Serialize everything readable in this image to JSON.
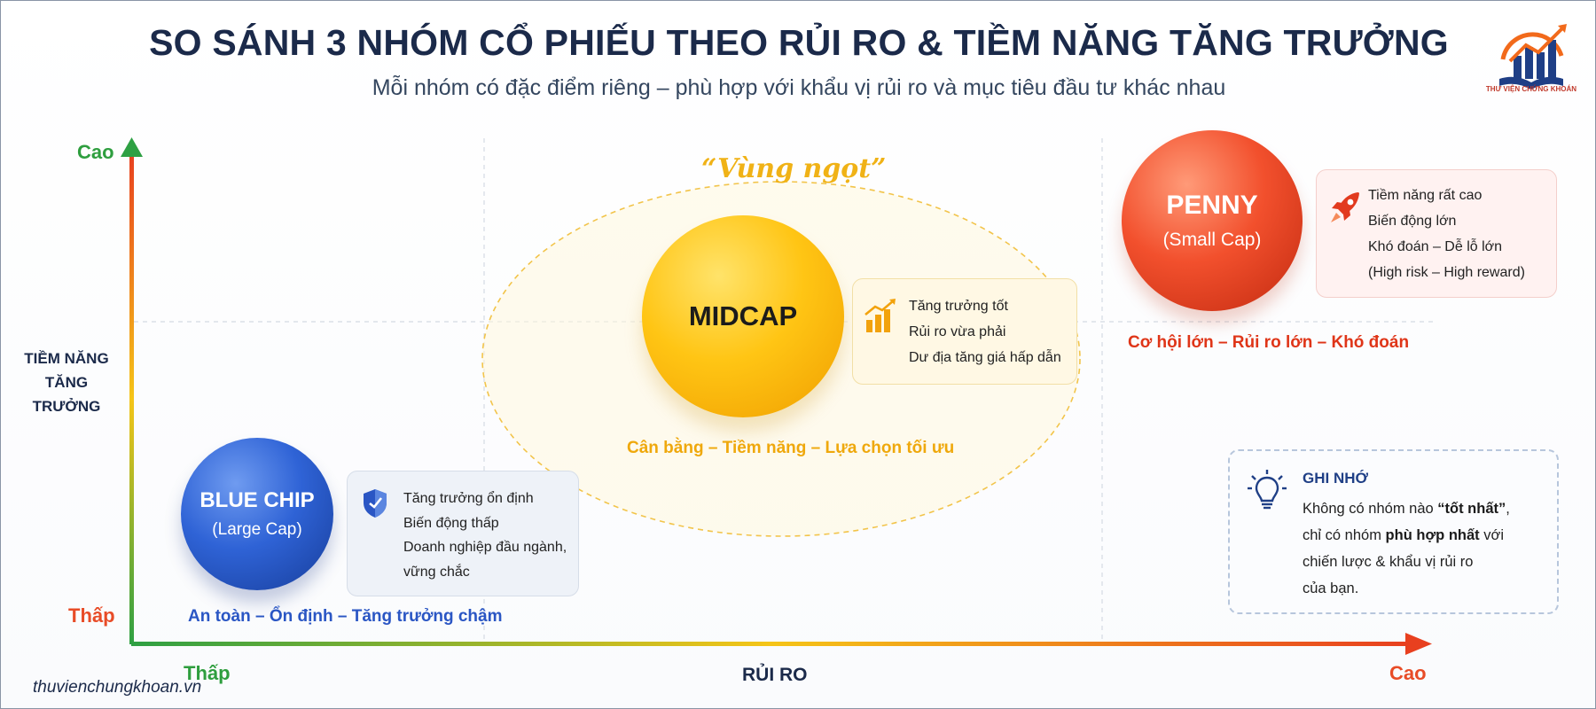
{
  "header": {
    "title": "SO SÁNH 3 NHÓM CỔ PHIẾU THEO RỦI RO & TIỀM NĂNG TĂNG TRƯỞNG",
    "subtitle": "Mỗi nhóm có đặc điểm riêng – phù hợp với khẩu vị rủi ro và mục tiêu đầu tư khác nhau"
  },
  "logo": {
    "caption": "THƯ VIỆN CHỨNG KHOÁN",
    "icon": "bar-chart-book-logo"
  },
  "axes": {
    "y_title": "TIỀM NĂNG TĂNG TRƯỞNG",
    "y_high": "Cao",
    "y_low": "Thấp",
    "x_title": "RỦI RO",
    "x_low": "Thấp",
    "x_high": "Cao",
    "gradient_colors": [
      "#2ea043",
      "#f5c518",
      "#e8401f"
    ]
  },
  "sweet_spot": {
    "label": "“Vùng ngọt”",
    "color": "#f0b216"
  },
  "groups": {
    "blue_chip": {
      "name": "BLUE CHIP",
      "sub": "(Large Cap)",
      "color": "#2f63d6",
      "icon": "shield-icon",
      "features": [
        "Tăng trưởng ổn định",
        "Biến động thấp",
        "Doanh nghiệp đầu ngành,",
        "vững chắc"
      ],
      "tagline": "An toàn – Ổn định – Tăng trưởng chậm"
    },
    "midcap": {
      "name": "MIDCAP",
      "color": "#ffc514",
      "icon": "growth-chart-icon",
      "features": [
        "Tăng trưởng tốt",
        "Rủi ro vừa phải",
        "Dư địa tăng giá hấp dẫn"
      ],
      "tagline": "Cân bằng – Tiềm năng – Lựa chọn tối ưu"
    },
    "penny": {
      "name": "PENNY",
      "sub": "(Small Cap)",
      "color": "#f2502d",
      "icon": "rocket-icon",
      "features": [
        "Tiềm năng rất cao",
        "Biến động lớn",
        "Khó đoán – Dễ lỗ lớn",
        "(High risk – High reward)"
      ],
      "tagline": "Cơ hội lớn – Rủi ro lớn – Khó đoán"
    }
  },
  "note": {
    "icon": "lightbulb-icon",
    "title": "GHI NHỚ",
    "line1": "Không có nhóm nào ",
    "line1_bold": "“tốt nhất”",
    "line1_end": ",",
    "line2": "chỉ có nhóm ",
    "line2_bold": "phù hợp nhất",
    "line2_end": " với",
    "line3": "chiến lược & khẩu vị rủi ro",
    "line4": "của bạn."
  },
  "footer": {
    "site": "thuvienchungkhoan.vn"
  }
}
